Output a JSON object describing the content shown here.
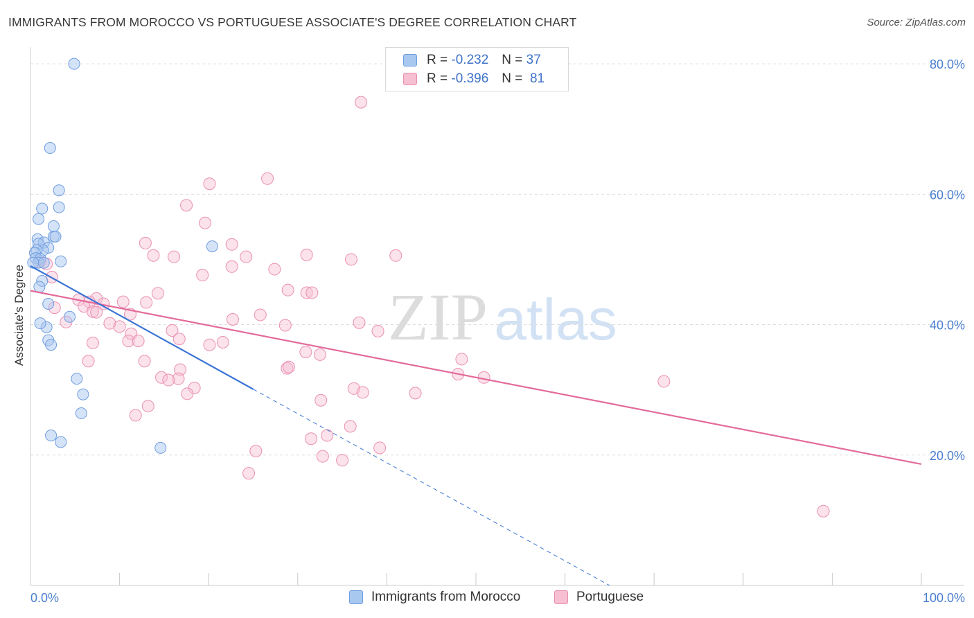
{
  "title": "IMMIGRANTS FROM MOROCCO VS PORTUGUESE ASSOCIATE'S DEGREE CORRELATION CHART",
  "source": "Source: ZipAtlas.com",
  "watermark": {
    "zip": "ZIP",
    "atlas": "atlas"
  },
  "colors": {
    "blue": "#3b75d6",
    "blue_fill": "#a9c8f0",
    "pink": "#e36b9a",
    "pink_fill": "#f6bfd2",
    "axis_text": "#4a7fd0",
    "grid": "#dddddd"
  },
  "legend": {
    "rows": [
      {
        "r_label": "R = ",
        "r_value": "-0.232",
        "n_label": "N = ",
        "n_value": "37"
      },
      {
        "r_label": "R = ",
        "r_value": "-0.396",
        "n_label": "N = ",
        "n_value": "81"
      }
    ]
  },
  "bottom_legend": {
    "items": [
      "Immigrants from Morocco",
      "Portuguese"
    ]
  },
  "chart_data": {
    "type": "scatter",
    "xlabel": "",
    "ylabel": "Associate's Degree",
    "xlim": [
      0,
      100
    ],
    "ylim": [
      0,
      81.5
    ],
    "x_tick_labels": [
      "0.0%",
      "100.0%"
    ],
    "y_ticks": [
      20,
      40,
      60,
      80
    ],
    "y_tick_labels": [
      "20.0%",
      "40.0%",
      "60.0%",
      "80.0%"
    ],
    "grid": true,
    "legend_position": "top-center",
    "series": [
      {
        "name": "Immigrants from Morocco",
        "color": "#3b75d6",
        "r": -0.232,
        "n": 37,
        "trend": {
          "x0": 0,
          "y0": 49.0,
          "x1": 25,
          "y1": 30.1,
          "dash_to_x": 65,
          "dash_to_y": 0
        },
        "points": [
          [
            4.9,
            80.0
          ],
          [
            2.2,
            67.1
          ],
          [
            3.2,
            60.6
          ],
          [
            1.3,
            57.8
          ],
          [
            3.2,
            58.0
          ],
          [
            0.9,
            56.2
          ],
          [
            2.6,
            55.1
          ],
          [
            2.6,
            53.5
          ],
          [
            2.8,
            53.5
          ],
          [
            0.8,
            53.1
          ],
          [
            1.5,
            52.6
          ],
          [
            0.9,
            52.4
          ],
          [
            2.0,
            51.8
          ],
          [
            1.4,
            51.4
          ],
          [
            0.7,
            51.4
          ],
          [
            0.5,
            51.0
          ],
          [
            0.6,
            50.2
          ],
          [
            1.1,
            50.1
          ],
          [
            0.9,
            49.5
          ],
          [
            1.5,
            49.5
          ],
          [
            3.4,
            49.7
          ],
          [
            1.3,
            46.7
          ],
          [
            1.0,
            45.8
          ],
          [
            2.0,
            43.2
          ],
          [
            1.8,
            39.6
          ],
          [
            1.1,
            40.2
          ],
          [
            2.0,
            37.6
          ],
          [
            2.3,
            36.9
          ],
          [
            4.4,
            41.2
          ],
          [
            5.2,
            31.7
          ],
          [
            5.9,
            29.3
          ],
          [
            5.7,
            26.4
          ],
          [
            2.3,
            23.0
          ],
          [
            3.4,
            22.0
          ],
          [
            14.6,
            21.1
          ],
          [
            20.4,
            52.0
          ],
          [
            0.3,
            49.5
          ]
        ]
      },
      {
        "name": "Portuguese",
        "color": "#e36b9a",
        "r": -0.396,
        "n": 81,
        "trend": {
          "x0": 0,
          "y0": 45.2,
          "x1": 100,
          "y1": 18.6
        },
        "points": [
          [
            37.1,
            74.1
          ],
          [
            26.6,
            62.4
          ],
          [
            20.1,
            61.6
          ],
          [
            17.5,
            58.3
          ],
          [
            19.6,
            55.6
          ],
          [
            12.9,
            52.5
          ],
          [
            22.6,
            52.3
          ],
          [
            13.8,
            50.6
          ],
          [
            16.1,
            50.4
          ],
          [
            24.2,
            50.4
          ],
          [
            31.0,
            50.7
          ],
          [
            36.0,
            50.0
          ],
          [
            41.0,
            50.6
          ],
          [
            22.6,
            48.9
          ],
          [
            27.4,
            48.5
          ],
          [
            19.3,
            47.6
          ],
          [
            1.1,
            49.7
          ],
          [
            1.8,
            49.3
          ],
          [
            2.4,
            47.3
          ],
          [
            14.3,
            44.8
          ],
          [
            28.9,
            45.3
          ],
          [
            31.0,
            44.9
          ],
          [
            31.6,
            44.9
          ],
          [
            7.4,
            44.0
          ],
          [
            6.6,
            43.5
          ],
          [
            8.2,
            43.2
          ],
          [
            10.4,
            43.5
          ],
          [
            5.4,
            43.8
          ],
          [
            6.0,
            42.8
          ],
          [
            7.0,
            42.0
          ],
          [
            7.4,
            41.9
          ],
          [
            2.7,
            42.6
          ],
          [
            11.2,
            41.6
          ],
          [
            13.0,
            43.4
          ],
          [
            25.8,
            41.5
          ],
          [
            22.7,
            40.8
          ],
          [
            28.6,
            39.9
          ],
          [
            36.9,
            40.3
          ],
          [
            39.0,
            39.0
          ],
          [
            8.9,
            40.2
          ],
          [
            10.0,
            39.7
          ],
          [
            4.0,
            40.4
          ],
          [
            11.3,
            38.6
          ],
          [
            15.9,
            39.1
          ],
          [
            11.0,
            37.5
          ],
          [
            12.1,
            37.5
          ],
          [
            16.7,
            37.8
          ],
          [
            21.6,
            37.3
          ],
          [
            20.1,
            36.9
          ],
          [
            7.0,
            37.2
          ],
          [
            30.9,
            35.8
          ],
          [
            32.5,
            35.4
          ],
          [
            6.5,
            34.4
          ],
          [
            12.8,
            34.4
          ],
          [
            48.4,
            34.7
          ],
          [
            28.8,
            33.3
          ],
          [
            29.0,
            33.5
          ],
          [
            16.8,
            33.1
          ],
          [
            16.6,
            31.7
          ],
          [
            14.7,
            31.9
          ],
          [
            15.5,
            31.5
          ],
          [
            48.0,
            32.4
          ],
          [
            50.9,
            31.9
          ],
          [
            71.1,
            31.3
          ],
          [
            18.4,
            30.3
          ],
          [
            17.6,
            29.4
          ],
          [
            36.3,
            30.2
          ],
          [
            37.3,
            29.6
          ],
          [
            43.2,
            29.5
          ],
          [
            32.6,
            28.4
          ],
          [
            13.2,
            27.5
          ],
          [
            11.8,
            26.1
          ],
          [
            35.9,
            24.4
          ],
          [
            33.3,
            23.0
          ],
          [
            31.5,
            22.5
          ],
          [
            39.2,
            21.1
          ],
          [
            25.3,
            20.6
          ],
          [
            32.8,
            19.8
          ],
          [
            35.0,
            19.2
          ],
          [
            24.5,
            17.2
          ],
          [
            89.0,
            11.4
          ]
        ]
      }
    ]
  }
}
